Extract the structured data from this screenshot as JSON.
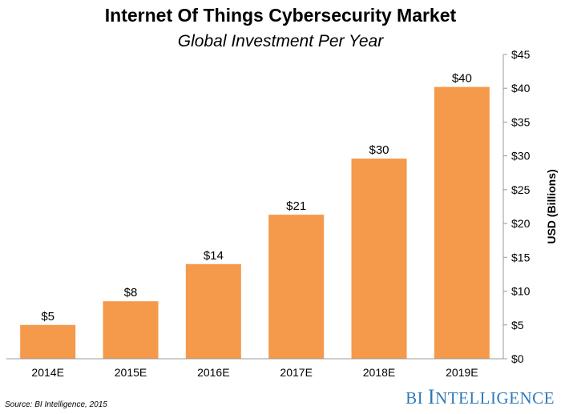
{
  "chart_data": {
    "type": "bar",
    "title": "Internet Of Things Cybersecurity Market",
    "subtitle": "Global Investment Per Year",
    "categories": [
      "2014E",
      "2015E",
      "2016E",
      "2017E",
      "2018E",
      "2019E"
    ],
    "values": [
      5,
      8.5,
      14,
      21.3,
      29.6,
      40.2
    ],
    "data_labels": [
      "$5",
      "$8",
      "$14",
      "$21",
      "$30",
      "$40"
    ],
    "ylabel": "USD (Billions)",
    "xlabel": "",
    "ylim": [
      0,
      45
    ],
    "yticks": [
      0,
      5,
      10,
      15,
      20,
      25,
      30,
      35,
      40,
      45
    ],
    "ytick_labels": [
      "$0",
      "$5",
      "$10",
      "$15",
      "$20",
      "$25",
      "$30",
      "$35",
      "$40",
      "$45"
    ],
    "y_axis_side": "right",
    "grid": false,
    "bar_color": "#f5994a"
  },
  "source": "Source: BI Intelligence, 2015",
  "brand": {
    "bi": "BI",
    "first_letter": "I",
    "rest": "NTELLIGENCE",
    "color": "#2f7ab9"
  }
}
